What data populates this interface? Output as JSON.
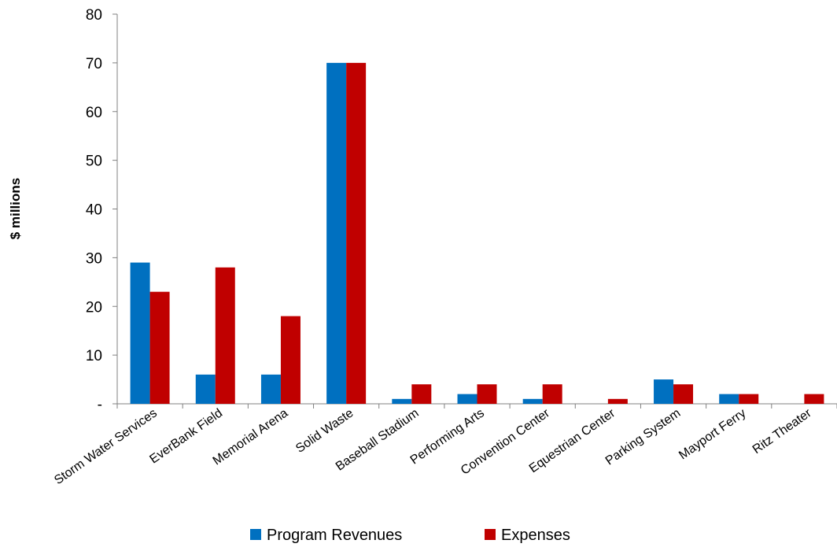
{
  "chart_data": {
    "type": "bar",
    "title": "",
    "xlabel": "",
    "ylabel": "$ millions",
    "ylim": [
      0,
      80
    ],
    "y_ticks": [
      {
        "value": 0,
        "label": "-"
      },
      {
        "value": 10,
        "label": "10"
      },
      {
        "value": 20,
        "label": "20"
      },
      {
        "value": 30,
        "label": "30"
      },
      {
        "value": 40,
        "label": "40"
      },
      {
        "value": 50,
        "label": "50"
      },
      {
        "value": 60,
        "label": "60"
      },
      {
        "value": 70,
        "label": "70"
      },
      {
        "value": 80,
        "label": "80"
      }
    ],
    "grid": false,
    "legend_position": "bottom",
    "categories": [
      "Storm Water Services",
      "EverBank Field",
      "Memorial Arena",
      "Solid Waste",
      "Baseball Stadium",
      "Performing Arts",
      "Convention Center",
      "Equestrian Center",
      "Parking System",
      "Mayport Ferry",
      "Ritz Theater"
    ],
    "series": [
      {
        "name": "Program Revenues",
        "color": "#0070C0",
        "values": [
          29,
          6,
          6,
          70,
          1,
          2,
          1,
          0,
          5,
          2,
          0
        ]
      },
      {
        "name": "Expenses",
        "color": "#C00000",
        "values": [
          23,
          28,
          18,
          70,
          4,
          4,
          4,
          1,
          4,
          2,
          2
        ]
      }
    ]
  }
}
